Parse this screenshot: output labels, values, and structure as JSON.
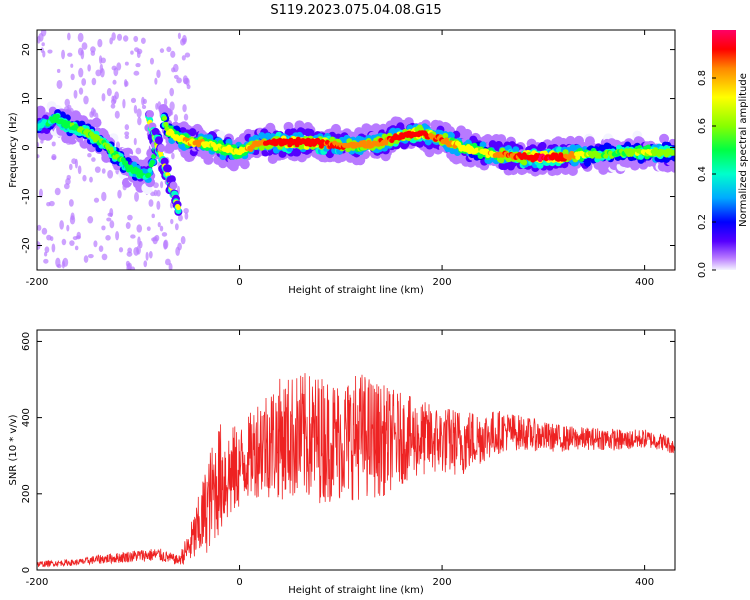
{
  "title": "S119.2023.075.04.08.G15",
  "chart_data": [
    {
      "type": "heatmap",
      "xlabel": "Height of straight line (km)",
      "ylabel": "Frequency (Hz)",
      "xlim": [
        -200,
        430
      ],
      "ylim": [
        -25,
        24
      ],
      "xticks": [
        -200,
        0,
        200,
        400
      ],
      "yticks": [
        -20,
        -10,
        0,
        10,
        20
      ],
      "grid": false,
      "colorbar": {
        "label": "Normalized spectral amplitude",
        "range": [
          0,
          1
        ],
        "ticks": [
          0.0,
          0.2,
          0.4,
          0.6,
          0.8
        ],
        "colormap": [
          "#f4f4ff",
          "#b87aff",
          "#5500ff",
          "#0000ff",
          "#00aaff",
          "#00ffcc",
          "#00ff44",
          "#88ff00",
          "#ffff00",
          "#ff8800",
          "#ff0000",
          "#ff0066"
        ]
      },
      "ridge": {
        "x": [
          -200,
          -190,
          -180,
          -170,
          -160,
          -150,
          -140,
          -130,
          -120,
          -110,
          -100,
          -90,
          -75,
          -70,
          -60,
          -50,
          -40,
          -30,
          -20,
          -10,
          0,
          10,
          20,
          40,
          60,
          80,
          100,
          120,
          140,
          160,
          180,
          200,
          220,
          240,
          260,
          280,
          300,
          320,
          340,
          360,
          380,
          400,
          430
        ],
        "y": [
          4,
          5,
          6,
          4.5,
          4,
          3,
          1.5,
          0,
          -2,
          -4,
          -5,
          -6,
          6,
          3,
          2,
          1.2,
          1,
          0.5,
          0,
          -0.5,
          -1,
          0,
          1,
          1,
          1.2,
          0.8,
          0.5,
          0.5,
          1,
          2.5,
          3,
          1.5,
          0,
          -1,
          -1.5,
          -2,
          -2,
          -2,
          -1.5,
          -1.5,
          -1,
          -1,
          -1
        ],
        "amplitude": [
          0.45,
          0.5,
          0.55,
          0.55,
          0.6,
          0.6,
          0.6,
          0.6,
          0.6,
          0.55,
          0.55,
          0.5,
          0.6,
          0.7,
          0.75,
          0.75,
          0.8,
          0.7,
          0.7,
          0.7,
          0.7,
          0.8,
          0.85,
          0.9,
          0.9,
          0.9,
          0.85,
          0.8,
          0.85,
          0.9,
          0.9,
          0.85,
          0.75,
          0.7,
          0.85,
          0.9,
          0.95,
          0.9,
          0.7,
          0.6,
          0.6,
          0.7,
          0.6
        ]
      }
    },
    {
      "type": "line",
      "xlabel": "Height of straight line (km)",
      "ylabel": "SNR (10 * v/v)",
      "xlim": [
        -200,
        430
      ],
      "ylim": [
        0,
        630
      ],
      "xticks": [
        -200,
        0,
        200,
        400
      ],
      "yticks": [
        0,
        200,
        400,
        600
      ],
      "grid": false,
      "series": [
        {
          "color": "#ee2222",
          "x": [
            -200,
            -180,
            -160,
            -140,
            -120,
            -100,
            -80,
            -60,
            -50,
            -40,
            -30,
            -20,
            -10,
            0,
            10,
            20,
            40,
            60,
            80,
            100,
            120,
            140,
            160,
            180,
            200,
            220,
            240,
            260,
            280,
            300,
            320,
            340,
            360,
            380,
            400,
            420,
            430
          ],
          "y": [
            15,
            18,
            20,
            28,
            32,
            38,
            40,
            25,
            60,
            110,
            180,
            240,
            250,
            270,
            300,
            330,
            345,
            350,
            345,
            340,
            355,
            340,
            345,
            345,
            340,
            335,
            350,
            365,
            360,
            350,
            345,
            345,
            345,
            340,
            345,
            335,
            320
          ],
          "noise_amplitude": [
            8,
            8,
            8,
            12,
            14,
            16,
            18,
            12,
            45,
            90,
            130,
            150,
            130,
            110,
            110,
            140,
            160,
            170,
            170,
            160,
            170,
            150,
            120,
            100,
            90,
            90,
            70,
            55,
            45,
            40,
            35,
            30,
            30,
            28,
            25,
            22,
            20
          ]
        }
      ]
    }
  ]
}
